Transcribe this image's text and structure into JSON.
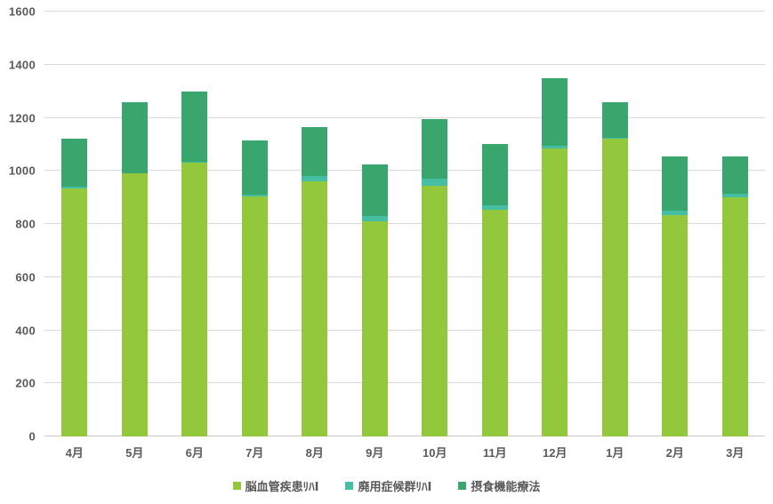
{
  "chart_data": {
    "type": "bar",
    "stacked": true,
    "title": "",
    "xlabel": "",
    "ylabel": "",
    "categories": [
      "4月",
      "5月",
      "6月",
      "7月",
      "8月",
      "9月",
      "10月",
      "11月",
      "12月",
      "1月",
      "2月",
      "3月"
    ],
    "series": [
      {
        "name": "脳血管疾患ﾘﾊⅠ",
        "color": "#94C83C",
        "values": [
          935,
          990,
          1030,
          905,
          960,
          810,
          945,
          855,
          1085,
          1120,
          835,
          900
        ]
      },
      {
        "name": "廃用症候群ﾘﾊⅠ",
        "color": "#45BFA3",
        "values": [
          5,
          0,
          5,
          5,
          20,
          20,
          25,
          15,
          10,
          5,
          15,
          15
        ]
      },
      {
        "name": "摂食機能療法",
        "color": "#39A66E",
        "values": [
          180,
          270,
          265,
          205,
          185,
          195,
          225,
          230,
          255,
          135,
          205,
          140
        ]
      }
    ],
    "stack_totals": [
      1120,
      1260,
      1300,
      1115,
      1165,
      1025,
      1195,
      1100,
      1350,
      1260,
      1055,
      1055
    ],
    "ylim": [
      0,
      1600
    ],
    "y_ticks": [
      0,
      200,
      400,
      600,
      800,
      1000,
      1200,
      1400,
      1600
    ],
    "grid": "horizontal",
    "legend_position": "bottom"
  },
  "style": {
    "background": "#FFFFFF",
    "gridline_color": "#D9D9D9",
    "axis_line_color": "#C9C9C9",
    "tick_text_color": "#595959"
  }
}
